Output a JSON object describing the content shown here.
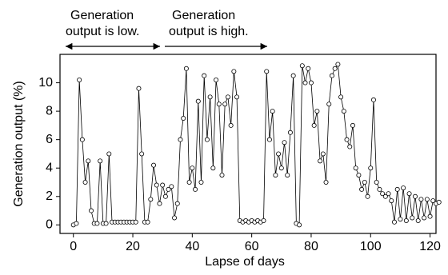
{
  "chart_data": {
    "type": "line",
    "xlabel": "Lapse of days",
    "ylabel": "Generation output (%)",
    "annotations": [
      [
        "Generation",
        "output is low."
      ],
      [
        "Generation",
        "output is high."
      ]
    ],
    "x": [
      0,
      1,
      2,
      3,
      4,
      5,
      6,
      7,
      8,
      9,
      10,
      11,
      12,
      13,
      14,
      15,
      16,
      17,
      18,
      19,
      20,
      21,
      22,
      23,
      24,
      25,
      26,
      27,
      28,
      29,
      30,
      31,
      32,
      33,
      34,
      35,
      36,
      37,
      38,
      39,
      40,
      41,
      42,
      43,
      44,
      45,
      46,
      47,
      48,
      49,
      50,
      51,
      52,
      53,
      54,
      55,
      56,
      57,
      58,
      59,
      60,
      61,
      62,
      63,
      64,
      65,
      66,
      67,
      68,
      69,
      70,
      71,
      72,
      73,
      74,
      75,
      76,
      77,
      78,
      79,
      80,
      81,
      82,
      83,
      84,
      85,
      86,
      87,
      88,
      89,
      90,
      91,
      92,
      93,
      94,
      95,
      96,
      97,
      98,
      99,
      100,
      101,
      102,
      103,
      104,
      105,
      106,
      107,
      108,
      109,
      110,
      111,
      112,
      113,
      114,
      115,
      116,
      117,
      118,
      119,
      120,
      121,
      122,
      123
    ],
    "series": [
      {
        "name": "Generation output",
        "color": "#000000",
        "values": [
          0,
          0.1,
          10.2,
          6,
          3,
          4.5,
          1,
          0.1,
          0.1,
          4.5,
          0.1,
          0.1,
          5,
          0.2,
          0.2,
          0.2,
          0.2,
          0.2,
          0.2,
          0.2,
          0.2,
          0.2,
          9.6,
          5,
          0.2,
          0.2,
          1.8,
          4.2,
          2.8,
          1.5,
          2.8,
          2,
          2.5,
          2.7,
          0.5,
          1.5,
          6,
          7.5,
          11,
          3,
          4,
          2.5,
          8.7,
          3,
          10.5,
          6,
          9,
          4,
          10.2,
          8.5,
          3.5,
          8.5,
          9,
          7,
          10.8,
          9,
          0.3,
          0.2,
          0.3,
          0.2,
          0.3,
          0.2,
          0.3,
          0.2,
          0.3,
          10.8,
          6,
          8,
          3.5,
          5,
          4,
          5.8,
          3.5,
          6.5,
          10.5,
          0.1,
          0,
          11.2,
          10,
          11,
          10,
          7,
          8,
          4.5,
          5,
          3,
          8.5,
          10.5,
          11,
          11.3,
          9,
          8,
          6,
          5.5,
          7,
          4,
          3.5,
          2.5,
          3,
          2,
          4,
          8.8,
          3,
          2.5,
          2.2,
          2,
          2.2,
          1.7,
          0.2,
          2.5,
          0.4,
          2.6,
          0.3,
          2.2,
          0.5,
          2,
          0.3,
          1.8,
          0.5,
          1.8,
          0.6,
          1.7,
          1.5,
          1.6
        ]
      }
    ],
    "xlim": [
      -4.5,
      122
    ],
    "ylim": [
      -0.6,
      12
    ],
    "xticks": [
      0,
      20,
      40,
      60,
      80,
      100,
      120
    ],
    "yticks": [
      0,
      2,
      4,
      6,
      8,
      10
    ]
  }
}
